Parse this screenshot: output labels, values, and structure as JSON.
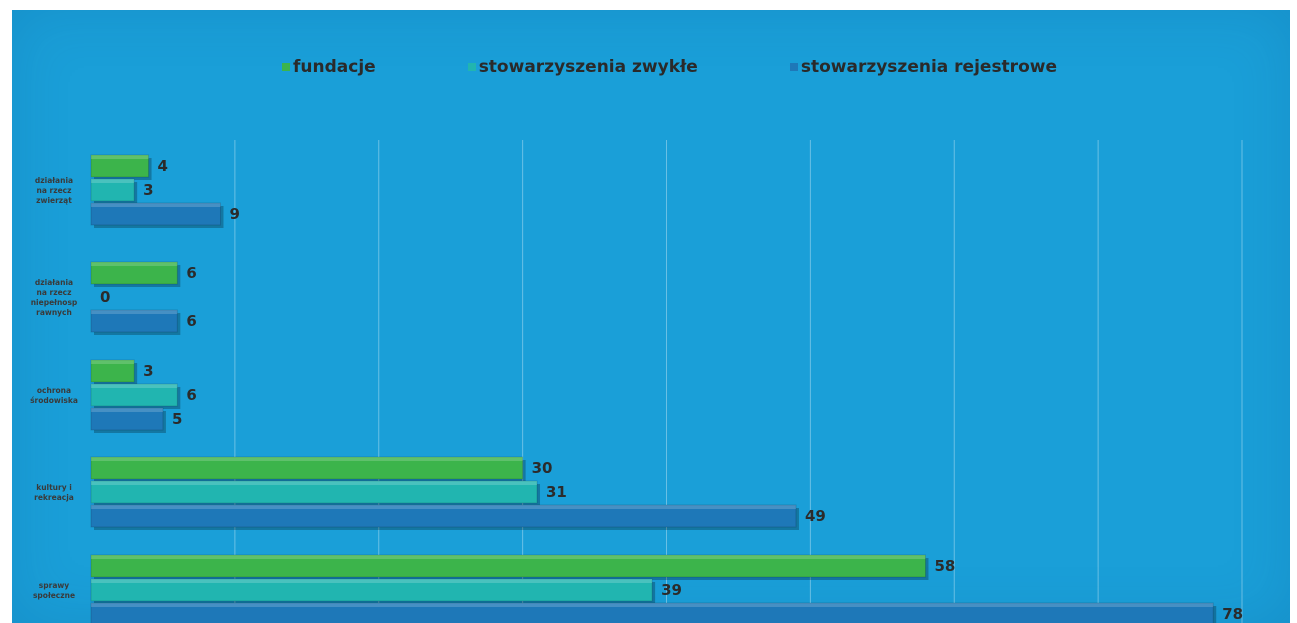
{
  "chart_data": {
    "type": "bar",
    "orientation": "horizontal",
    "title": "",
    "xlabel": "",
    "ylabel": "",
    "xlim": [
      0,
      80
    ],
    "grid": true,
    "legend_position": "top",
    "categories": [
      "działania na rzecz zwierząt",
      "działania na rzecz niepełnosprawnych",
      "ochrona środowiska",
      "kultury i rekreacja",
      "sprawy społeczne"
    ],
    "series": [
      {
        "name": "fundacje",
        "color": "#3cb44b",
        "values": [
          4,
          6,
          3,
          30,
          58
        ]
      },
      {
        "name": "stowarzyszenia zwykłe",
        "color": "#21b5b0",
        "values": [
          3,
          0,
          6,
          31,
          39
        ]
      },
      {
        "name": "stowarzyszenia rejestrowe",
        "color": "#1e78b8",
        "values": [
          9,
          6,
          5,
          49,
          78
        ]
      }
    ]
  }
}
